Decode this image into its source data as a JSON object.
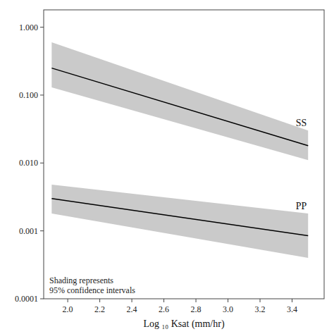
{
  "chart_data": {
    "type": "line",
    "xlabel": "Log ₁₀ Ksat (mm/hr)",
    "annotation": "Shading represents\n95% confidence intervals",
    "x": [
      1.9,
      3.5
    ],
    "series": [
      {
        "name": "SS",
        "color": "#000000",
        "values": [
          0.25,
          0.018
        ],
        "lower": [
          0.13,
          0.011
        ],
        "upper": [
          0.6,
          0.03
        ]
      },
      {
        "name": "PP",
        "color": "#000000",
        "values": [
          0.003,
          0.00085
        ],
        "lower": [
          0.0018,
          0.0004
        ],
        "upper": [
          0.0048,
          0.0018
        ]
      }
    ],
    "xlim": [
      1.85,
      3.6
    ],
    "xticks": [
      {
        "value": 2.0,
        "label": "2.0"
      },
      2.2,
      2.4,
      2.6,
      2.8,
      {
        "value": 3.0,
        "label": "3.0"
      },
      3.2,
      3.4
    ],
    "ylim": [
      0.0001,
      1.8
    ],
    "yticks": [
      0.0001,
      0.001,
      {
        "value": 0.01,
        "label": "0.010"
      },
      {
        "value": 0.1,
        "label": "0.100"
      },
      {
        "value": 1,
        "label": "1.000"
      }
    ],
    "log": "y",
    "grid": false
  }
}
